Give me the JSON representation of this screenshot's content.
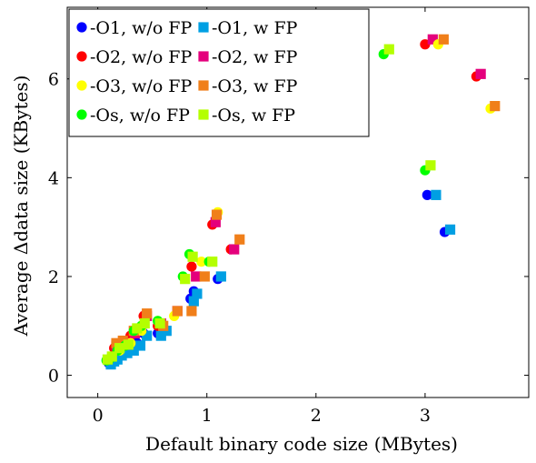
{
  "chart_data": {
    "type": "scatter",
    "xlabel": "Default binary code size (MBytes)",
    "ylabel": "Average Δdata size (KBytes)",
    "xlim": [
      -0.28,
      3.95
    ],
    "ylim": [
      -0.45,
      7.45
    ],
    "xticks": [
      0,
      1,
      2,
      3
    ],
    "yticks": [
      0,
      2,
      4,
      6
    ],
    "grid": false,
    "legend_position": "top-left",
    "series": [
      {
        "name": "-O1, w/o FP",
        "color": "#0000ff",
        "marker": "circle",
        "points": [
          [
            0.1,
            0.25
          ],
          [
            0.13,
            0.3
          ],
          [
            0.16,
            0.35
          ],
          [
            0.2,
            0.45
          ],
          [
            0.24,
            0.5
          ],
          [
            0.3,
            0.55
          ],
          [
            0.36,
            0.65
          ],
          [
            0.42,
            0.85
          ],
          [
            0.55,
            0.85
          ],
          [
            0.6,
            0.95
          ],
          [
            0.85,
            1.55
          ],
          [
            0.88,
            1.7
          ],
          [
            1.1,
            1.95
          ],
          [
            3.02,
            3.65
          ],
          [
            3.18,
            2.9
          ]
        ]
      },
      {
        "name": "-O1, w FP",
        "color": "#009fe3",
        "marker": "square",
        "points": [
          [
            0.12,
            0.22
          ],
          [
            0.15,
            0.28
          ],
          [
            0.18,
            0.32
          ],
          [
            0.22,
            0.4
          ],
          [
            0.27,
            0.45
          ],
          [
            0.33,
            0.5
          ],
          [
            0.39,
            0.6
          ],
          [
            0.45,
            0.8
          ],
          [
            0.58,
            0.8
          ],
          [
            0.63,
            0.9
          ],
          [
            0.88,
            1.5
          ],
          [
            0.91,
            1.65
          ],
          [
            1.13,
            2.0
          ],
          [
            3.1,
            3.65
          ],
          [
            3.23,
            2.95
          ]
        ]
      },
      {
        "name": "-O2, w/o FP",
        "color": "#ff0000",
        "marker": "circle",
        "points": [
          [
            0.15,
            0.55
          ],
          [
            0.22,
            0.6
          ],
          [
            0.3,
            0.8
          ],
          [
            0.42,
            1.2
          ],
          [
            0.55,
            1.0
          ],
          [
            0.86,
            2.2
          ],
          [
            1.05,
            3.05
          ],
          [
            1.22,
            2.55
          ],
          [
            3.0,
            6.7
          ],
          [
            3.47,
            6.05
          ]
        ]
      },
      {
        "name": "-O2, w FP",
        "color": "#e4007c",
        "marker": "square",
        "points": [
          [
            0.17,
            0.6
          ],
          [
            0.25,
            0.65
          ],
          [
            0.34,
            0.85
          ],
          [
            0.45,
            1.2
          ],
          [
            0.58,
            1.05
          ],
          [
            0.73,
            1.3
          ],
          [
            0.9,
            2.0
          ],
          [
            1.08,
            3.1
          ],
          [
            1.25,
            2.55
          ],
          [
            3.07,
            6.8
          ],
          [
            3.51,
            6.1
          ]
        ]
      },
      {
        "name": "-O3, w/o FP",
        "color": "#ffff00",
        "marker": "circle",
        "points": [
          [
            0.2,
            0.5
          ],
          [
            0.3,
            0.65
          ],
          [
            0.4,
            0.9
          ],
          [
            0.55,
            1.1
          ],
          [
            0.7,
            1.2
          ],
          [
            0.95,
            2.3
          ],
          [
            1.1,
            3.3
          ],
          [
            3.12,
            6.7
          ],
          [
            3.6,
            5.4
          ]
        ]
      },
      {
        "name": "-O3, w FP",
        "color": "#f07f1a",
        "marker": "square",
        "points": [
          [
            0.17,
            0.65
          ],
          [
            0.23,
            0.7
          ],
          [
            0.33,
            0.9
          ],
          [
            0.45,
            1.25
          ],
          [
            0.6,
            1.0
          ],
          [
            0.73,
            1.3
          ],
          [
            0.86,
            1.3
          ],
          [
            0.98,
            2.0
          ],
          [
            1.09,
            3.25
          ],
          [
            1.3,
            2.75
          ],
          [
            3.17,
            6.8
          ],
          [
            3.64,
            5.45
          ]
        ]
      },
      {
        "name": "-Os, w/o FP",
        "color": "#00ff00",
        "marker": "circle",
        "points": [
          [
            0.08,
            0.3
          ],
          [
            0.12,
            0.35
          ],
          [
            0.18,
            0.5
          ],
          [
            0.25,
            0.6
          ],
          [
            0.33,
            0.9
          ],
          [
            0.4,
            1.0
          ],
          [
            0.55,
            1.1
          ],
          [
            0.78,
            2.0
          ],
          [
            0.84,
            2.45
          ],
          [
            1.02,
            2.3
          ],
          [
            3.0,
            4.15
          ],
          [
            2.62,
            6.5
          ]
        ]
      },
      {
        "name": "-Os, w FP",
        "color": "#b4ff00",
        "marker": "square",
        "points": [
          [
            0.09,
            0.32
          ],
          [
            0.13,
            0.38
          ],
          [
            0.2,
            0.55
          ],
          [
            0.28,
            0.62
          ],
          [
            0.36,
            0.95
          ],
          [
            0.43,
            1.05
          ],
          [
            0.57,
            1.05
          ],
          [
            0.8,
            1.95
          ],
          [
            0.87,
            2.4
          ],
          [
            1.05,
            2.3
          ],
          [
            3.05,
            4.25
          ],
          [
            2.67,
            6.6
          ]
        ]
      }
    ]
  }
}
